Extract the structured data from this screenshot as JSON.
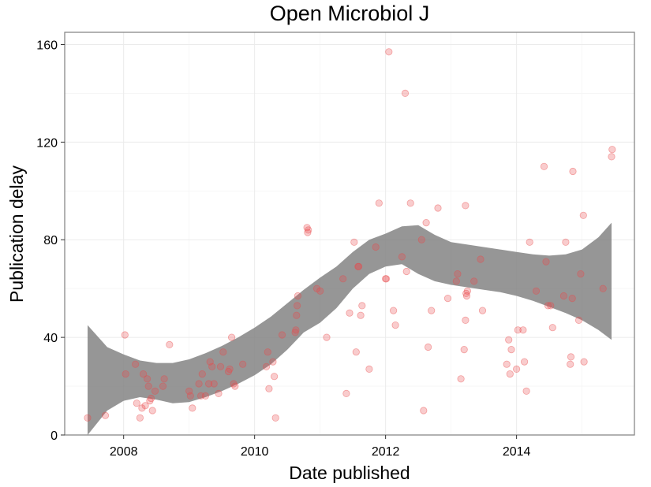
{
  "chart_data": {
    "type": "scatter",
    "title": "Open Microbiol J",
    "xlabel": "Date published",
    "ylabel": "Publication delay",
    "xlim": [
      2007.1,
      2015.8
    ],
    "ylim": [
      0,
      165
    ],
    "x_ticks": [
      2008,
      2010,
      2012,
      2014
    ],
    "x_tick_labels": [
      "2008",
      "2010",
      "2012",
      "2014"
    ],
    "y_ticks": [
      0,
      40,
      80,
      120,
      160
    ],
    "y_tick_labels": [
      "0",
      "40",
      "80",
      "120",
      "160"
    ],
    "grid": true,
    "legend": "none",
    "colors": {
      "points": "#e8494a",
      "smooth_band": "#7f7f7f",
      "grid_major": "#ebebeb",
      "grid_minor": "#f5f5f5",
      "panel_border": "#7f7f7f"
    },
    "points": [
      [
        2007.45,
        7
      ],
      [
        2007.72,
        8
      ],
      [
        2008.02,
        41
      ],
      [
        2008.03,
        25
      ],
      [
        2008.18,
        29
      ],
      [
        2008.2,
        13
      ],
      [
        2008.25,
        7
      ],
      [
        2008.28,
        11
      ],
      [
        2008.3,
        25
      ],
      [
        2008.33,
        12
      ],
      [
        2008.36,
        23
      ],
      [
        2008.38,
        20
      ],
      [
        2008.4,
        14
      ],
      [
        2008.42,
        15
      ],
      [
        2008.44,
        10
      ],
      [
        2008.48,
        18
      ],
      [
        2008.6,
        20
      ],
      [
        2008.62,
        23
      ],
      [
        2008.7,
        37
      ],
      [
        2009.0,
        18
      ],
      [
        2009.02,
        16
      ],
      [
        2009.05,
        11
      ],
      [
        2009.15,
        21
      ],
      [
        2009.18,
        16
      ],
      [
        2009.2,
        25
      ],
      [
        2009.25,
        16
      ],
      [
        2009.3,
        21
      ],
      [
        2009.32,
        30
      ],
      [
        2009.35,
        28
      ],
      [
        2009.38,
        21
      ],
      [
        2009.45,
        17
      ],
      [
        2009.48,
        28
      ],
      [
        2009.52,
        34
      ],
      [
        2009.6,
        26
      ],
      [
        2009.62,
        27
      ],
      [
        2009.65,
        40
      ],
      [
        2009.68,
        21
      ],
      [
        2009.7,
        20
      ],
      [
        2009.82,
        29
      ],
      [
        2010.18,
        28
      ],
      [
        2010.2,
        34
      ],
      [
        2010.22,
        19
      ],
      [
        2010.28,
        30
      ],
      [
        2010.3,
        24
      ],
      [
        2010.32,
        7
      ],
      [
        2010.42,
        41
      ],
      [
        2010.62,
        42
      ],
      [
        2010.63,
        43
      ],
      [
        2010.64,
        49
      ],
      [
        2010.65,
        53
      ],
      [
        2010.66,
        57
      ],
      [
        2010.8,
        85
      ],
      [
        2010.81,
        83
      ],
      [
        2010.82,
        84
      ],
      [
        2010.95,
        60
      ],
      [
        2011.0,
        59
      ],
      [
        2011.1,
        40
      ],
      [
        2011.35,
        64
      ],
      [
        2011.4,
        17
      ],
      [
        2011.45,
        50
      ],
      [
        2011.52,
        79
      ],
      [
        2011.55,
        34
      ],
      [
        2011.58,
        69
      ],
      [
        2011.59,
        69
      ],
      [
        2011.62,
        49
      ],
      [
        2011.64,
        53
      ],
      [
        2011.75,
        27
      ],
      [
        2011.85,
        77
      ],
      [
        2011.9,
        95
      ],
      [
        2012.0,
        64
      ],
      [
        2012.01,
        64
      ],
      [
        2012.05,
        157
      ],
      [
        2012.12,
        51
      ],
      [
        2012.15,
        45
      ],
      [
        2012.25,
        73
      ],
      [
        2012.3,
        140
      ],
      [
        2012.32,
        67
      ],
      [
        2012.38,
        95
      ],
      [
        2012.55,
        80
      ],
      [
        2012.58,
        10
      ],
      [
        2012.62,
        87
      ],
      [
        2012.65,
        36
      ],
      [
        2012.7,
        51
      ],
      [
        2012.8,
        93
      ],
      [
        2012.95,
        56
      ],
      [
        2013.08,
        63
      ],
      [
        2013.1,
        66
      ],
      [
        2013.15,
        23
      ],
      [
        2013.2,
        35
      ],
      [
        2013.22,
        47
      ],
      [
        2013.23,
        58
      ],
      [
        2013.24,
        57
      ],
      [
        2013.25,
        59
      ],
      [
        2013.35,
        63
      ],
      [
        2013.45,
        72
      ],
      [
        2013.48,
        51
      ],
      [
        2013.22,
        94
      ],
      [
        2013.85,
        29
      ],
      [
        2013.88,
        39
      ],
      [
        2013.9,
        25
      ],
      [
        2013.92,
        35
      ],
      [
        2014.0,
        27
      ],
      [
        2014.02,
        43
      ],
      [
        2014.1,
        43
      ],
      [
        2014.12,
        30
      ],
      [
        2014.15,
        18
      ],
      [
        2014.2,
        79
      ],
      [
        2014.3,
        59
      ],
      [
        2014.42,
        110
      ],
      [
        2014.45,
        71
      ],
      [
        2014.48,
        53
      ],
      [
        2014.52,
        53
      ],
      [
        2014.55,
        44
      ],
      [
        2014.72,
        57
      ],
      [
        2014.75,
        79
      ],
      [
        2014.82,
        29
      ],
      [
        2014.83,
        32
      ],
      [
        2014.85,
        56
      ],
      [
        2014.86,
        108
      ],
      [
        2014.95,
        47
      ],
      [
        2014.98,
        66
      ],
      [
        2015.02,
        90
      ],
      [
        2015.03,
        30
      ],
      [
        2015.32,
        60
      ],
      [
        2015.45,
        114
      ],
      [
        2015.46,
        117
      ]
    ],
    "smooth_band": {
      "x": [
        2007.45,
        2007.75,
        2008.0,
        2008.25,
        2008.5,
        2008.75,
        2009.0,
        2009.25,
        2009.5,
        2009.75,
        2010.0,
        2010.25,
        2010.5,
        2010.75,
        2011.0,
        2011.25,
        2011.5,
        2011.75,
        2012.0,
        2012.25,
        2012.5,
        2012.75,
        2013.0,
        2013.25,
        2013.5,
        2013.75,
        2014.0,
        2014.25,
        2014.5,
        2014.75,
        2015.0,
        2015.25,
        2015.45
      ],
      "upper": [
        45,
        36,
        33,
        30.5,
        29.5,
        29.5,
        31,
        33.5,
        36.5,
        40,
        44,
        48.5,
        54,
        59.5,
        64.5,
        69,
        75,
        80,
        82.5,
        85.5,
        86,
        82,
        79,
        78,
        77,
        76,
        75,
        74,
        73.5,
        74,
        76,
        81,
        87
      ],
      "lower": [
        0,
        10,
        14,
        15.5,
        14.5,
        13,
        13.5,
        15.5,
        18,
        21,
        24.5,
        29,
        35,
        42,
        46,
        52,
        60,
        66,
        69,
        70,
        66,
        63,
        61.5,
        60.5,
        59.5,
        58.5,
        57,
        55,
        52.5,
        50,
        47,
        43,
        39
      ]
    }
  }
}
